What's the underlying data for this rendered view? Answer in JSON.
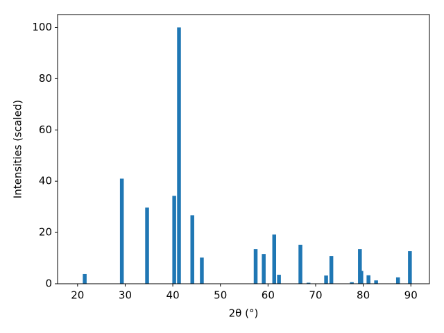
{
  "chart_data": {
    "type": "bar",
    "x_label": "2θ (°)",
    "y_label": "Intensities (scaled)",
    "x": [
      21.5,
      29.3,
      34.6,
      40.3,
      41.3,
      44.1,
      46.1,
      57.4,
      59.1,
      61.3,
      62.3,
      66.8,
      68.5,
      72.2,
      73.3,
      77.6,
      79.3,
      79.6,
      81.1,
      82.7,
      87.3,
      89.8
    ],
    "values": [
      3.8,
      41,
      29.7,
      34.3,
      100,
      26.7,
      10.2,
      13.5,
      11.6,
      19.2,
      3.5,
      15.2,
      0.4,
      3.2,
      10.8,
      0.6,
      13.5,
      5,
      3.3,
      1.3,
      2.5,
      12.7
    ],
    "color": "#1f77b4",
    "xlim": [
      15.8,
      93.9
    ],
    "xticks": [
      20,
      30,
      40,
      50,
      60,
      70,
      80,
      90
    ],
    "ylim": [
      0,
      105
    ],
    "yticks": [
      0,
      20,
      40,
      60,
      80,
      100
    ],
    "grid": false
  }
}
